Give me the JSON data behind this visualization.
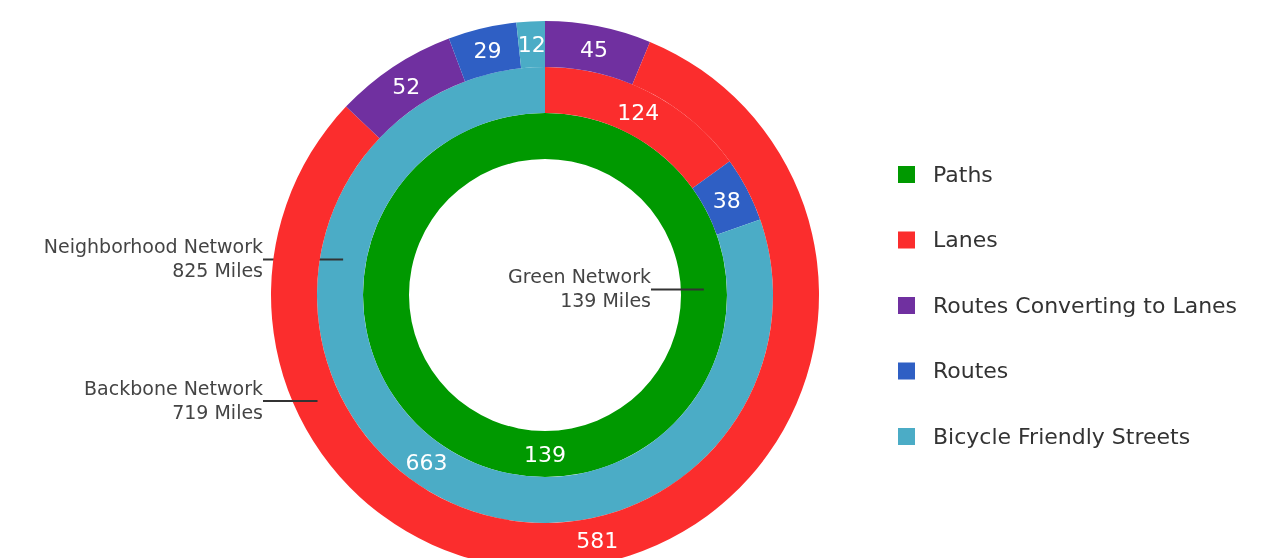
{
  "chart_data": {
    "type": "donut",
    "categories": [
      "Paths",
      "Lanes",
      "Routes Converting to Lanes",
      "Routes",
      "Bicycle Friendly Streets",
      null
    ],
    "colors": [
      "#009900",
      "#fb2d2d",
      "#7030a0",
      "#2f5fc4",
      "#4bacc6",
      "#7030a0"
    ],
    "series": [
      {
        "name": "Green Network",
        "values": [
          139,
          null,
          null,
          null,
          null,
          null
        ]
      },
      {
        "name": "Neighborhood Network",
        "values": [
          null,
          124,
          null,
          38,
          663,
          null
        ]
      },
      {
        "name": "Backbone Network",
        "values": [
          null,
          581,
          52,
          29,
          12,
          45
        ]
      }
    ],
    "annotations": [
      "139 Miles",
      "825 Miles",
      "719 Miles"
    ],
    "data_labels": true,
    "legend": "right"
  }
}
